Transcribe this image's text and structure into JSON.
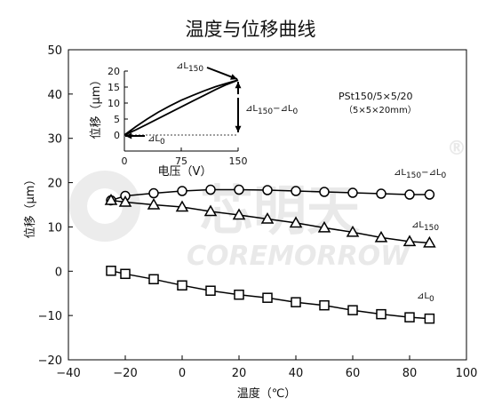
{
  "chart_data": {
    "type": "line",
    "title": "温度与位移曲线",
    "xlabel": "温度（℃）",
    "ylabel": "位移（μm）",
    "xlim": [
      -40,
      100
    ],
    "ylim": [
      -20,
      50
    ],
    "x_ticks": [
      -40,
      -20,
      0,
      20,
      40,
      60,
      80,
      100
    ],
    "y_ticks": [
      -20,
      -10,
      0,
      10,
      20,
      30,
      40,
      50
    ],
    "x_tick_labels": [
      "−40",
      "−20",
      "0",
      "20",
      "40",
      "60",
      "80",
      "100"
    ],
    "y_tick_labels": [
      "−20",
      "−10",
      "0",
      "10",
      "20",
      "30",
      "40",
      "50"
    ],
    "model_label": "PSt150/5×5/20",
    "model_size": "（5×5×20mm）",
    "series": [
      {
        "name": "⊿L150−⊿L0",
        "marker": "circle",
        "label": {
          "main": "⊿L",
          "sub": "150",
          "main2": "−⊿L",
          "sub2": "0"
        },
        "x": [
          -25,
          -20,
          -10,
          0,
          10,
          20,
          30,
          40,
          50,
          60,
          70,
          80,
          87
        ],
        "y": [
          16.0,
          17.0,
          17.6,
          18.1,
          18.4,
          18.4,
          18.3,
          18.1,
          17.9,
          17.7,
          17.5,
          17.3,
          17.3
        ]
      },
      {
        "name": "⊿L150",
        "marker": "triangle",
        "label": {
          "main": "⊿L",
          "sub": "150"
        },
        "x": [
          -25,
          -20,
          -10,
          0,
          10,
          20,
          30,
          40,
          50,
          60,
          70,
          80,
          87
        ],
        "y": [
          16.0,
          15.6,
          15.0,
          14.5,
          13.5,
          12.7,
          11.8,
          10.9,
          9.8,
          8.8,
          7.6,
          6.7,
          6.4
        ]
      },
      {
        "name": "⊿L0",
        "marker": "square",
        "label": {
          "main": "⊿L",
          "sub": "0"
        },
        "x": [
          -25,
          -20,
          -10,
          0,
          10,
          20,
          30,
          40,
          50,
          60,
          70,
          80,
          87
        ],
        "y": [
          0.1,
          -0.6,
          -1.8,
          -3.2,
          -4.4,
          -5.3,
          -6.0,
          -7.0,
          -7.7,
          -8.8,
          -9.7,
          -10.4,
          -10.7
        ]
      }
    ],
    "inset": {
      "type": "line",
      "xlabel": "电压（V）",
      "ylabel": "位移（μm）",
      "xlim": [
        0,
        150
      ],
      "ylim": [
        -5,
        20
      ],
      "x_ticks": [
        0,
        75,
        150
      ],
      "y_ticks": [
        0,
        5,
        10,
        15,
        20
      ],
      "labels": {
        "top": {
          "main": "⊿L",
          "sub": "150"
        },
        "mid": {
          "main": "⊿L",
          "sub": "150",
          "main2": "−⊿L",
          "sub2": "0"
        },
        "bottom": {
          "main": "⊿L",
          "sub": "0"
        }
      },
      "curve_upper": {
        "x": [
          0,
          15,
          30,
          45,
          60,
          75,
          90,
          105,
          120,
          135,
          150
        ],
        "y": [
          0,
          2.6,
          5.0,
          7.2,
          9.1,
          10.9,
          12.4,
          13.8,
          15.1,
          16.2,
          17.2
        ]
      },
      "curve_lower": {
        "x": [
          0,
          15,
          30,
          45,
          60,
          75,
          90,
          105,
          120,
          135,
          150
        ],
        "y": [
          0,
          1.6,
          3.4,
          5.2,
          7.0,
          8.8,
          10.6,
          12.4,
          14.2,
          15.8,
          17.2
        ]
      }
    },
    "watermark": {
      "brand": "芯明天",
      "latin": "COREMORROW",
      "registered": "®"
    },
    "colors": {
      "line": "#000000",
      "marker_fill": "#ffffff",
      "watermark": "#e9e9e9"
    }
  }
}
